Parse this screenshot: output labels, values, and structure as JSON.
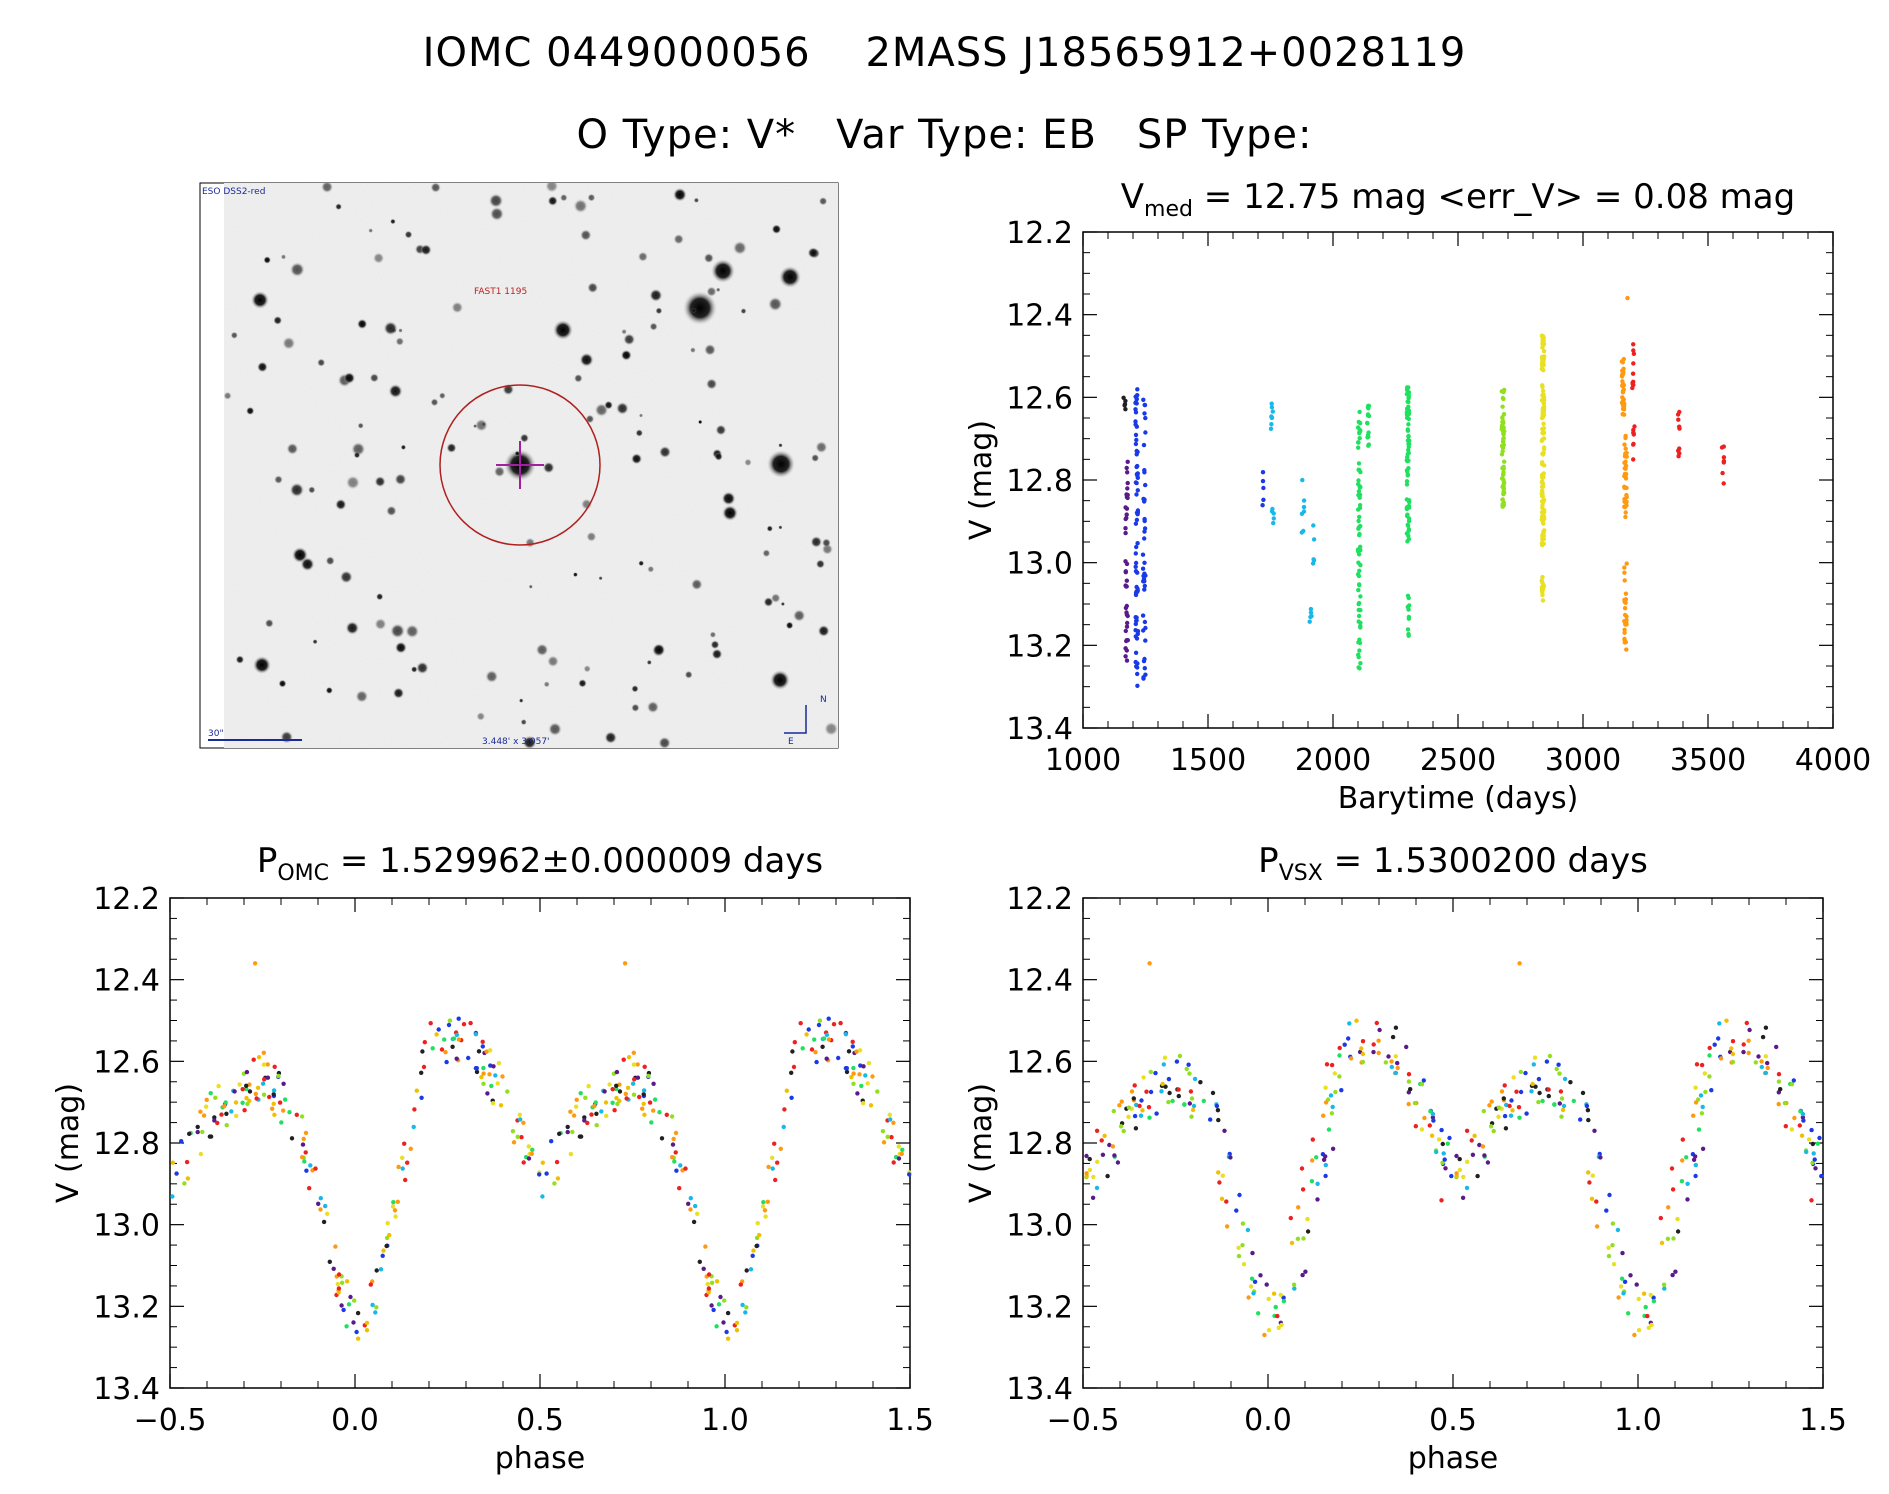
{
  "header": {
    "ids": "IOMC 0449000056    2MASS J18565912+0028119",
    "otype": "O Type: V*",
    "vartype": "Var Type: EB",
    "sptype": "SP Type:"
  },
  "finder": {
    "survey": "ESO DSS2-red",
    "label": "FAST1 1195",
    "scale": "30\"",
    "fov": "3.448' x 3.057'",
    "north": "N",
    "east": "E",
    "colors": {
      "circle": "#b02020",
      "cross": "#a020a0",
      "frame": "#000000"
    }
  },
  "colors": {
    "series": [
      "#202020",
      "#5a1a8a",
      "#1a3ae8",
      "#18b8e8",
      "#20e060",
      "#90e020",
      "#e8e020",
      "#f0c000",
      "#ff9a10",
      "#ee2020"
    ]
  },
  "chart_data": [
    {
      "id": "lightcurve",
      "type": "scatter",
      "title_main": "V",
      "title_sub": "med",
      "title_rest": " = 12.75 mag <err_V> = 0.08 mag",
      "xlabel": "Barytime (days)",
      "ylabel": "V (mag)",
      "xlim": [
        1000,
        4000
      ],
      "ylim": [
        13.4,
        12.2
      ],
      "xticks": [
        1000,
        1500,
        2000,
        2500,
        3000,
        3500,
        4000
      ],
      "yticks": [
        12.2,
        12.4,
        12.6,
        12.8,
        13.0,
        13.2,
        13.4
      ],
      "ytick_labels": [
        "12.2",
        "12.4",
        "12.6",
        "12.8",
        "13.0",
        "13.2",
        "13.4"
      ],
      "clusters": [
        {
          "t": 1165,
          "ymin": 12.6,
          "ymax": 12.64,
          "n": 5,
          "c": 0
        },
        {
          "t": 1175,
          "ymin": 12.75,
          "ymax": 13.27,
          "n": 40,
          "c": 1
        },
        {
          "t": 1215,
          "ymin": 12.58,
          "ymax": 13.33,
          "n": 65,
          "c": 2
        },
        {
          "t": 1245,
          "ymin": 12.58,
          "ymax": 13.3,
          "n": 40,
          "c": 2
        },
        {
          "t": 1720,
          "ymin": 12.75,
          "ymax": 12.88,
          "n": 5,
          "c": 2
        },
        {
          "t": 1755,
          "ymin": 12.61,
          "ymax": 12.68,
          "n": 8,
          "c": 3
        },
        {
          "t": 1760,
          "ymin": 12.85,
          "ymax": 12.92,
          "n": 5,
          "c": 3
        },
        {
          "t": 1880,
          "ymin": 12.8,
          "ymax": 12.95,
          "n": 7,
          "c": 3
        },
        {
          "t": 1910,
          "ymin": 13.1,
          "ymax": 13.15,
          "n": 5,
          "c": 3
        },
        {
          "t": 1925,
          "ymin": 12.9,
          "ymax": 13.01,
          "n": 5,
          "c": 3
        },
        {
          "t": 2105,
          "ymin": 12.63,
          "ymax": 13.28,
          "n": 70,
          "c": 4
        },
        {
          "t": 2140,
          "ymin": 12.62,
          "ymax": 12.72,
          "n": 15,
          "c": 4
        },
        {
          "t": 2300,
          "ymin": 12.57,
          "ymax": 12.95,
          "n": 70,
          "c": 4
        },
        {
          "t": 2300,
          "ymin": 13.08,
          "ymax": 13.22,
          "n": 10,
          "c": 4
        },
        {
          "t": 2680,
          "ymin": 12.58,
          "ymax": 12.89,
          "n": 60,
          "c": 5
        },
        {
          "t": 2840,
          "ymin": 12.45,
          "ymax": 12.96,
          "n": 130,
          "c": 6
        },
        {
          "t": 2840,
          "ymin": 13.02,
          "ymax": 13.1,
          "n": 12,
          "c": 6
        },
        {
          "t": 3160,
          "ymin": 12.5,
          "ymax": 12.65,
          "n": 35,
          "c": 8
        },
        {
          "t": 3170,
          "ymin": 12.69,
          "ymax": 12.89,
          "n": 35,
          "c": 8
        },
        {
          "t": 3170,
          "ymin": 12.98,
          "ymax": 13.22,
          "n": 25,
          "c": 8
        },
        {
          "t": 3175,
          "ymin": 12.36,
          "ymax": 12.36,
          "n": 1,
          "c": 8
        },
        {
          "t": 3200,
          "ymin": 12.47,
          "ymax": 12.6,
          "n": 10,
          "c": 9
        },
        {
          "t": 3205,
          "ymin": 12.66,
          "ymax": 12.76,
          "n": 8,
          "c": 9
        },
        {
          "t": 3385,
          "ymin": 12.62,
          "ymax": 12.76,
          "n": 9,
          "c": 9
        },
        {
          "t": 3560,
          "ymin": 12.71,
          "ymax": 12.81,
          "n": 7,
          "c": 9
        }
      ]
    },
    {
      "id": "phase_omc",
      "type": "scatter",
      "title_main": "P",
      "title_sub": "OMC",
      "title_rest": " = 1.529962±0.000009 days",
      "xlabel": "phase",
      "ylabel": "V (mag)",
      "xlim": [
        -0.5,
        1.5
      ],
      "ylim": [
        13.4,
        12.2
      ],
      "xticks": [
        -0.5,
        0.0,
        0.5,
        1.0,
        1.5
      ],
      "xtick_labels": [
        "−0.5",
        "0.0",
        "0.5",
        "1.0",
        "1.5"
      ],
      "yticks": [
        12.2,
        12.4,
        12.6,
        12.8,
        13.0,
        13.2,
        13.4
      ],
      "ytick_labels": [
        "12.2",
        "12.4",
        "12.6",
        "12.8",
        "13.0",
        "13.2",
        "13.4"
      ],
      "curve": [
        [
          0.0,
          13.25
        ],
        [
          0.05,
          13.18
        ],
        [
          0.12,
          12.9
        ],
        [
          0.2,
          12.55
        ],
        [
          0.3,
          12.54
        ],
        [
          0.4,
          12.68
        ],
        [
          0.5,
          12.9
        ],
        [
          0.62,
          12.72
        ],
        [
          0.75,
          12.63
        ],
        [
          0.85,
          12.76
        ],
        [
          0.95,
          13.12
        ],
        [
          1.0,
          13.25
        ]
      ],
      "outliers": [
        [
          -0.27,
          12.36
        ],
        [
          0.73,
          12.36
        ]
      ]
    },
    {
      "id": "phase_vsx",
      "type": "scatter",
      "title_main": "P",
      "title_sub": "VSX",
      "title_rest": " = 1.5300200 days",
      "xlabel": "phase",
      "ylabel": "V (mag)",
      "xlim": [
        -0.5,
        1.5
      ],
      "ylim": [
        13.4,
        12.2
      ],
      "xticks": [
        -0.5,
        0.0,
        0.5,
        1.0,
        1.5
      ],
      "xtick_labels": [
        "−0.5",
        "0.0",
        "0.5",
        "1.0",
        "1.5"
      ],
      "yticks": [
        12.2,
        12.4,
        12.6,
        12.8,
        13.0,
        13.2,
        13.4
      ],
      "ytick_labels": [
        "12.2",
        "12.4",
        "12.6",
        "12.8",
        "13.0",
        "13.2",
        "13.4"
      ],
      "curve": [
        [
          0.0,
          13.25
        ],
        [
          0.05,
          13.18
        ],
        [
          0.12,
          12.9
        ],
        [
          0.2,
          12.55
        ],
        [
          0.3,
          12.54
        ],
        [
          0.4,
          12.68
        ],
        [
          0.5,
          12.9
        ],
        [
          0.62,
          12.72
        ],
        [
          0.75,
          12.63
        ],
        [
          0.85,
          12.76
        ],
        [
          0.95,
          13.12
        ],
        [
          1.0,
          13.25
        ]
      ],
      "outliers": [
        [
          -0.32,
          12.36
        ],
        [
          0.68,
          12.36
        ]
      ]
    }
  ]
}
